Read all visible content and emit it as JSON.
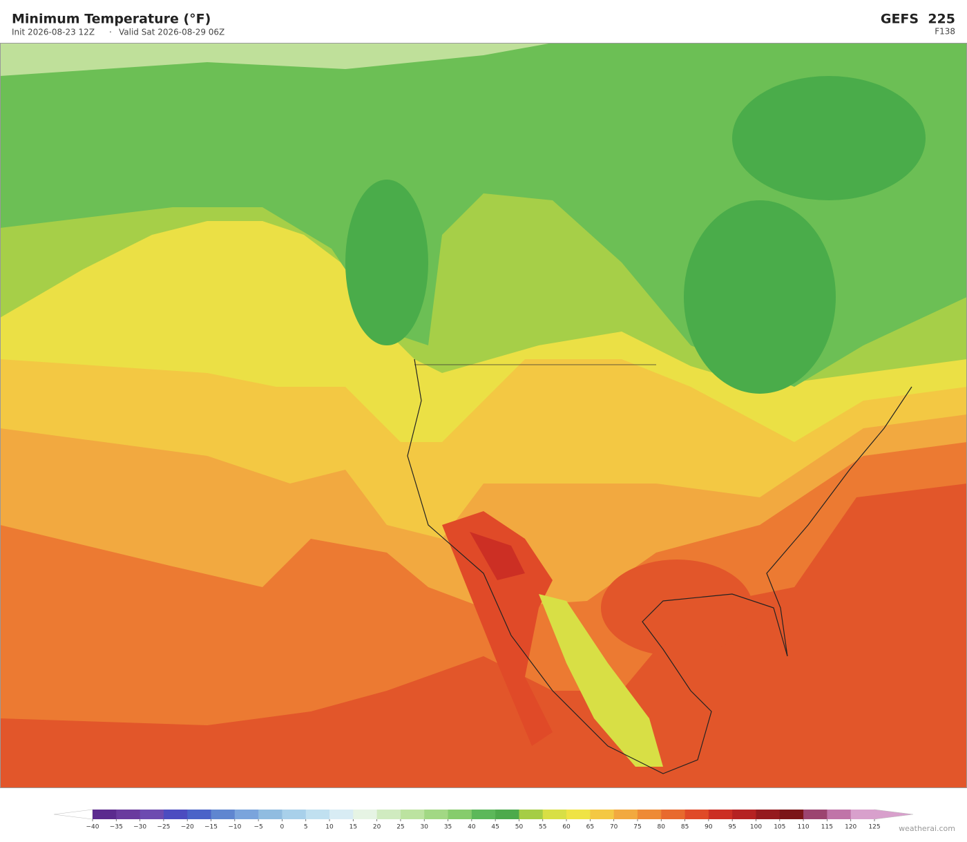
{
  "header": {
    "title": "Minimum Temperature  (°F)",
    "init": "Init 2026-08-23 12Z",
    "separator": "·",
    "valid": "Valid Sat 2026-08-29 06Z",
    "model": "GEFS  225",
    "forecast_hour": "F138"
  },
  "colorbar": {
    "ticks": [
      {
        "value": -40,
        "label": "−40"
      },
      {
        "value": -35,
        "label": "−35"
      },
      {
        "value": -30,
        "label": "−30"
      },
      {
        "value": -25,
        "label": "−25"
      },
      {
        "value": -20,
        "label": "−20"
      },
      {
        "value": -15,
        "label": "−15"
      },
      {
        "value": -10,
        "label": "−10"
      },
      {
        "value": -5,
        "label": "−5"
      },
      0,
      5,
      10,
      15,
      20,
      25,
      30,
      35,
      40,
      45,
      50,
      55,
      60,
      65,
      70,
      75,
      80,
      85,
      90,
      95,
      100,
      105,
      110,
      115,
      120,
      125
    ],
    "colors": [
      "#5b2a8e",
      "#6a3a9e",
      "#6d4bb0",
      "#4c4cc0",
      "#4a63c8",
      "#5f86d0",
      "#7aa4dc",
      "#90bce0",
      "#a8d0ea",
      "#c0e0f0",
      "#d8ecf4",
      "#e6f4e4",
      "#d0ebc0",
      "#bce3a0",
      "#a2d884",
      "#86cc6c",
      "#5cb85a",
      "#4daa4c",
      "#a5cd45",
      "#d8df45",
      "#efe345",
      "#f4c843",
      "#f2a93f",
      "#ee8a35",
      "#e86a2e",
      "#e04a28",
      "#cc2f24",
      "#b52222",
      "#951a1e",
      "#7b1518",
      "#9c4470",
      "#c074a8",
      "#d8a0cc"
    ],
    "under_color": "#ffffff",
    "over_color": "#d8a0cc"
  },
  "credit": "weatherai.com"
}
